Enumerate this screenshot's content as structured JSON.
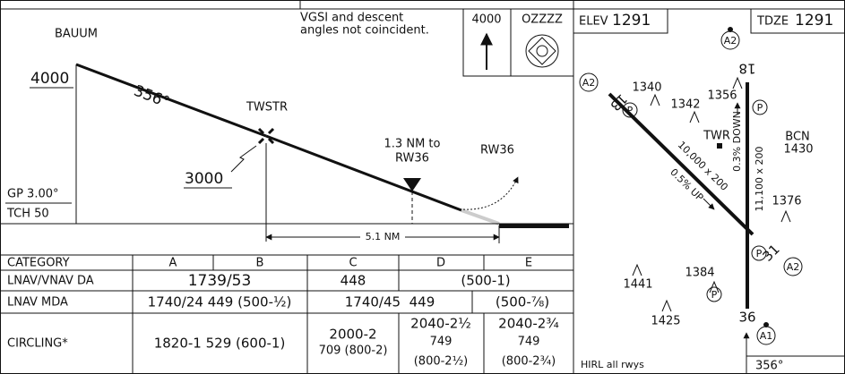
{
  "profile": {
    "note": [
      "VGSI and descent",
      "angles not coincident."
    ],
    "msa": {
      "altitude": "4000",
      "fix": "OZZZZ"
    },
    "fixes": [
      {
        "name": "BAUUM",
        "altitude": "4000"
      },
      {
        "name": "TWSTR",
        "altitude": "3000"
      }
    ],
    "course": "356°",
    "vdp": [
      "1.3 NM to",
      "RW36"
    ],
    "runway": "RW36",
    "glidepath": "GP 3.00°",
    "tch": "TCH 50",
    "distance": "5.1 NM"
  },
  "minimums": {
    "header": [
      "CATEGORY",
      "A",
      "B",
      "C",
      "D",
      "E"
    ],
    "rows": [
      {
        "label": "LNAV/VNAV DA",
        "cells": [
          [
            "1739/53"
          ],
          [
            "448"
          ],
          [
            "(500-1)"
          ]
        ]
      },
      {
        "label": "LNAV MDA",
        "cells": [
          [
            "1740/24 449 (500-½)"
          ],
          [
            "1740/45  449"
          ],
          [
            "(500-⅞)"
          ]
        ]
      },
      {
        "label": "CIRCLING*",
        "cells": [
          [
            "1820-1 529 (600-1)"
          ],
          [
            "2000-2",
            "709 (800-2)"
          ],
          [
            "2040-2½",
            "749",
            "(800-2½)"
          ],
          [
            "2040-2¾",
            "749",
            "(800-2¾)"
          ]
        ]
      }
    ]
  },
  "plan": {
    "elev": {
      "label": "ELEV",
      "value": "1291"
    },
    "tdze": {
      "label": "TDZE",
      "value": "1291"
    },
    "runway_ends": [
      "18",
      "36",
      "13",
      "31"
    ],
    "lights": [
      "A2",
      "A2",
      "A2",
      "A1"
    ],
    "pcl": [
      "P",
      "P",
      "P",
      "P"
    ],
    "obstacles": [
      "1340",
      "1342",
      "1356",
      "1376",
      "1441",
      "1384",
      "1425"
    ],
    "tower": "TWR",
    "beacon": [
      "BCN",
      "1430"
    ],
    "rwy13": {
      "dims": "10,000 x 200",
      "gradient": "0.5% UP"
    },
    "rwy18": {
      "dims": "11,100 x 200",
      "gradient": "0.3% DOWN"
    },
    "lighting": "HIRL all rwys",
    "course": "356°"
  }
}
